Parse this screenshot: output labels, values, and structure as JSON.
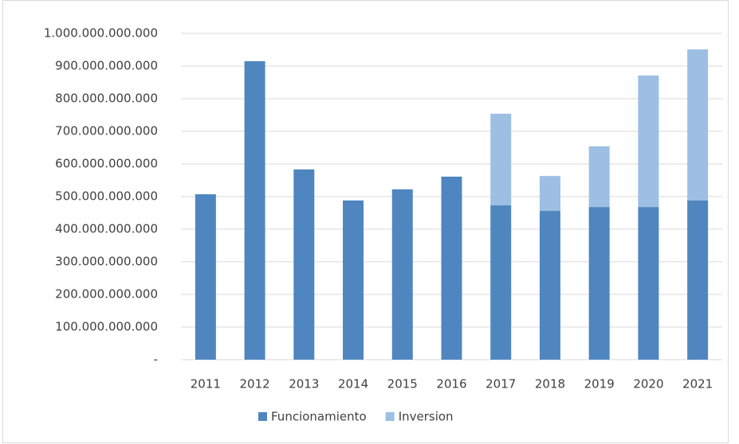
{
  "chart_data": {
    "type": "stacked_bar",
    "categories": [
      "2011",
      "2012",
      "2013",
      "2014",
      "2015",
      "2016",
      "2017",
      "2018",
      "2019",
      "2020",
      "2021"
    ],
    "series": [
      {
        "name": "Funcionamiento",
        "color": "#4f86bf",
        "values": [
          507000000000,
          915000000000,
          583000000000,
          488000000000,
          522000000000,
          561000000000,
          473000000000,
          456000000000,
          468000000000,
          468000000000,
          488000000000
        ]
      },
      {
        "name": "Inversion",
        "color": "#9dbfe3",
        "values": [
          null,
          null,
          null,
          null,
          null,
          null,
          281000000000,
          107000000000,
          186000000000,
          403000000000,
          463000000000
        ]
      }
    ],
    "ylim": [
      0,
      1000000000000
    ],
    "yticks": [
      {
        "value": 0,
        "label": "-"
      },
      {
        "value": 100000000000,
        "label": "100.000.000.000"
      },
      {
        "value": 200000000000,
        "label": "200.000.000.000"
      },
      {
        "value": 300000000000,
        "label": "300.000.000.000"
      },
      {
        "value": 400000000000,
        "label": "400.000.000.000"
      },
      {
        "value": 500000000000,
        "label": "500.000.000.000"
      },
      {
        "value": 600000000000,
        "label": "600.000.000.000"
      },
      {
        "value": 700000000000,
        "label": "700.000.000.000"
      },
      {
        "value": 800000000000,
        "label": "800.000.000.000"
      },
      {
        "value": 900000000000,
        "label": "900.000.000.000"
      },
      {
        "value": 1000000000000,
        "label": "1.000.000.000.000"
      }
    ],
    "grid": true,
    "legend": "bottom"
  }
}
